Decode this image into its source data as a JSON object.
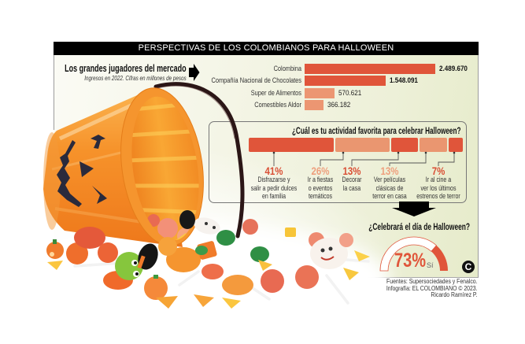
{
  "header": {
    "title": "PERSPECTIVAS DE LOS COLOMBIANOS PARA HALLOWEEN"
  },
  "market": {
    "title": "Los grandes jugadores del mercado",
    "subtitle": "Ingresos en 2022. Cifras en millones de pesos",
    "items": [
      {
        "label": "Colombina",
        "value": "2.489.670"
      },
      {
        "label": "Compañía Nacional de Chocolates",
        "value": "1.548.091"
      },
      {
        "label": "Super de Alimentos",
        "value": "570.621"
      },
      {
        "label": "Comestibles Aldor",
        "value": "366.182"
      }
    ]
  },
  "activity": {
    "question": "¿Cuál es tu actividad favorita para celebrar Halloween?",
    "items": [
      {
        "pct": "41%",
        "desc": [
          "Disfrazarse y",
          "salir a pedir dulces",
          "en familia"
        ]
      },
      {
        "pct": "26%",
        "desc": [
          "Ir a fiestas",
          "o eventos",
          "temáticos"
        ]
      },
      {
        "pct": "13%",
        "desc": [
          "Decorar",
          "la casa"
        ]
      },
      {
        "pct": "13%",
        "desc": [
          "Ver películas",
          "clásicas de",
          "terror en casa"
        ]
      },
      {
        "pct": "7%",
        "desc": [
          "Ir al cine a",
          "ver los últimos",
          "estrenos de terror"
        ]
      }
    ]
  },
  "celebrate": {
    "question": "¿Celebrará el día de Halloween?",
    "pct": "73%",
    "answer": "Sí"
  },
  "credits": {
    "lines": [
      "Fuentes: Supersociedades y Fenalco.",
      "Infografía: EL COLOMBIANO © 2023.",
      "Ricardo Ramírez P."
    ]
  },
  "logo": {
    "glyph": "C"
  },
  "colors": {
    "accent_dark": "#e0553a",
    "accent_light": "#ec9672",
    "header_bg": "#000000",
    "header_text": "#ffffff",
    "panel_bg": "#eef0d8"
  },
  "icons": {
    "market_arrow": "arrow-right-icon",
    "section_arrow": "arrow-down-icon",
    "logo": "el-colombiano-logo-icon",
    "illustration": "pumpkin-bucket-candy-illustration"
  },
  "chart_data": [
    {
      "type": "bar",
      "orientation": "horizontal",
      "title": "Los grandes jugadores del mercado",
      "subtitle": "Ingresos en 2022. Cifras en millones de pesos",
      "categories": [
        "Colombina",
        "Compañía Nacional de Chocolates",
        "Super de Alimentos",
        "Comestibles Aldor"
      ],
      "values": [
        2489670,
        1548091,
        570621,
        366182
      ],
      "value_labels": [
        "2.489.670",
        "1.548.091",
        "570.621",
        "366.182"
      ],
      "colors": [
        "#e0553a",
        "#e0553a",
        "#ec9672",
        "#ec9672"
      ],
      "xlabel": "",
      "ylabel": "",
      "grid": false,
      "legend": "none"
    },
    {
      "type": "bar",
      "stacked": true,
      "orientation": "horizontal",
      "title": "¿Cuál es tu actividad favorita para celebrar Halloween?",
      "categories": [
        "Disfrazarse y salir a pedir dulces en familia",
        "Ir a fiestas o eventos temáticos",
        "Decorar la casa",
        "Ver películas clásicas de terror en casa",
        "Ir al cine a ver los últimos estrenos de terror"
      ],
      "values": [
        41,
        26,
        13,
        13,
        7
      ],
      "unit": "%",
      "colors": [
        "#e0553a",
        "#ea9670",
        "#e0553a",
        "#ea9670",
        "#e0553a"
      ],
      "label_colors": [
        "#d94f35",
        "#ee9f7d",
        "#d94f35",
        "#ee9f7d",
        "#d94f35"
      ],
      "grid": false,
      "legend": "none"
    },
    {
      "type": "pie",
      "variant": "semicircle-gauge",
      "title": "¿Celebrará el día de Halloween?",
      "categories": [
        "Sí"
      ],
      "values": [
        73
      ],
      "max": 100,
      "label": "73% Sí",
      "colors": [
        "#e0553a",
        "#ffffff"
      ]
    }
  ]
}
